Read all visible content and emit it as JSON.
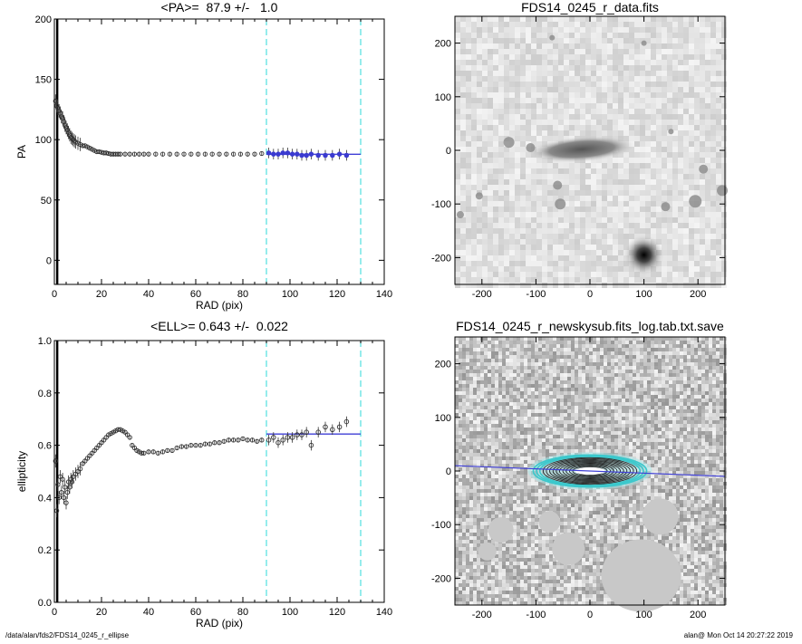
{
  "footer": {
    "path": "/data/alan/fds2/FDS14_0245_r_ellipse",
    "user_time": "alan@  Mon Oct 14 20:27:22 2019"
  },
  "colors": {
    "fit_line": "#3f3fd6",
    "bounds": "#4fe0e0",
    "points": "#333333",
    "blue_points": "#3a3ad0"
  },
  "chart_data": [
    {
      "type": "scatter",
      "title": "<PA>=  87.9 +/-   1.0",
      "xlabel": "RAD (pix)",
      "ylabel": "PA",
      "xlim": [
        0,
        140
      ],
      "ylim": [
        -20,
        200
      ],
      "xticks": [
        0,
        20,
        40,
        60,
        80,
        100,
        120,
        140
      ],
      "yticks": [
        0,
        50,
        100,
        150,
        200
      ],
      "mean_value": 87.9,
      "fit_range": [
        90,
        130
      ],
      "bounds": [
        90,
        130
      ],
      "points": [
        [
          0.5,
          132
        ],
        [
          1,
          128
        ],
        [
          1.5,
          126
        ],
        [
          2,
          124
        ],
        [
          2.5,
          122
        ],
        [
          3,
          119
        ],
        [
          3.5,
          118
        ],
        [
          4,
          115
        ],
        [
          4.5,
          112
        ],
        [
          5,
          110
        ],
        [
          5.5,
          108
        ],
        [
          6,
          106
        ],
        [
          6.5,
          104
        ],
        [
          7,
          102
        ],
        [
          7.5,
          101
        ],
        [
          8,
          100
        ],
        [
          8.5,
          99
        ],
        [
          9,
          98
        ],
        [
          10,
          97
        ],
        [
          11,
          96
        ],
        [
          12,
          95
        ],
        [
          13,
          95
        ],
        [
          14,
          94
        ],
        [
          15,
          93
        ],
        [
          16,
          92
        ],
        [
          17,
          91
        ],
        [
          18,
          90
        ],
        [
          19,
          90
        ],
        [
          20,
          89.5
        ],
        [
          21,
          89
        ],
        [
          22,
          89
        ],
        [
          23,
          88.5
        ],
        [
          24,
          88
        ],
        [
          25,
          88
        ],
        [
          26,
          88
        ],
        [
          27,
          88
        ],
        [
          28,
          88
        ],
        [
          30,
          88
        ],
        [
          32,
          88
        ],
        [
          34,
          88
        ],
        [
          36,
          88
        ],
        [
          38,
          88
        ],
        [
          40,
          88
        ],
        [
          43,
          88
        ],
        [
          46,
          88
        ],
        [
          49,
          88
        ],
        [
          52,
          88
        ],
        [
          55,
          88
        ],
        [
          58,
          88
        ],
        [
          61,
          88
        ],
        [
          64,
          88
        ],
        [
          67,
          88
        ],
        [
          70,
          88
        ],
        [
          73,
          88
        ],
        [
          76,
          88
        ],
        [
          79,
          88
        ],
        [
          82,
          88
        ],
        [
          85,
          88
        ],
        [
          88,
          88.5
        ]
      ],
      "fit_points": [
        [
          91,
          89
        ],
        [
          93,
          88
        ],
        [
          95,
          88
        ],
        [
          97,
          89
        ],
        [
          99,
          89
        ],
        [
          101,
          88
        ],
        [
          103,
          88
        ],
        [
          105,
          87
        ],
        [
          107,
          87
        ],
        [
          109,
          88
        ],
        [
          112,
          87
        ],
        [
          115,
          87
        ],
        [
          118,
          87
        ],
        [
          121,
          88
        ],
        [
          124,
          87
        ]
      ]
    },
    {
      "type": "scatter",
      "title": "<ELL>= 0.643 +/-  0.022",
      "xlabel": "RAD (pix)",
      "ylabel": "ellipticity",
      "xlim": [
        0,
        140
      ],
      "ylim": [
        0,
        1
      ],
      "xticks": [
        0,
        20,
        40,
        60,
        80,
        100,
        120,
        140
      ],
      "yticks": [
        0.0,
        0.2,
        0.4,
        0.6,
        0.8,
        1.0
      ],
      "mean_value": 0.643,
      "fit_range": [
        90,
        130
      ],
      "bounds": [
        90,
        130
      ],
      "points": [
        [
          0.5,
          0.54
        ],
        [
          1,
          0.35
        ],
        [
          1.5,
          0.45
        ],
        [
          2,
          0.4
        ],
        [
          2.5,
          0.48
        ],
        [
          3,
          0.42
        ],
        [
          3.5,
          0.47
        ],
        [
          4,
          0.4
        ],
        [
          4.5,
          0.44
        ],
        [
          5,
          0.38
        ],
        [
          5.5,
          0.42
        ],
        [
          6,
          0.46
        ],
        [
          6.5,
          0.44
        ],
        [
          7,
          0.47
        ],
        [
          7.5,
          0.46
        ],
        [
          8,
          0.48
        ],
        [
          9,
          0.49
        ],
        [
          10,
          0.5
        ],
        [
          11,
          0.51
        ],
        [
          12,
          0.53
        ],
        [
          13,
          0.54
        ],
        [
          14,
          0.55
        ],
        [
          15,
          0.56
        ],
        [
          16,
          0.57
        ],
        [
          17,
          0.58
        ],
        [
          18,
          0.59
        ],
        [
          19,
          0.6
        ],
        [
          20,
          0.61
        ],
        [
          21,
          0.62
        ],
        [
          22,
          0.63
        ],
        [
          23,
          0.64
        ],
        [
          24,
          0.645
        ],
        [
          25,
          0.65
        ],
        [
          26,
          0.655
        ],
        [
          27,
          0.66
        ],
        [
          28,
          0.66
        ],
        [
          29,
          0.655
        ],
        [
          30,
          0.65
        ],
        [
          31,
          0.64
        ],
        [
          32,
          0.63
        ],
        [
          33,
          0.6
        ],
        [
          34,
          0.59
        ],
        [
          35,
          0.58
        ],
        [
          36,
          0.575
        ],
        [
          37,
          0.57
        ],
        [
          38,
          0.57
        ],
        [
          40,
          0.575
        ],
        [
          42,
          0.575
        ],
        [
          44,
          0.57
        ],
        [
          46,
          0.575
        ],
        [
          48,
          0.58
        ],
        [
          50,
          0.58
        ],
        [
          52,
          0.59
        ],
        [
          54,
          0.595
        ],
        [
          56,
          0.595
        ],
        [
          58,
          0.6
        ],
        [
          60,
          0.6
        ],
        [
          62,
          0.6
        ],
        [
          64,
          0.605
        ],
        [
          66,
          0.605
        ],
        [
          68,
          0.61
        ],
        [
          70,
          0.61
        ],
        [
          72,
          0.615
        ],
        [
          74,
          0.62
        ],
        [
          76,
          0.62
        ],
        [
          78,
          0.62
        ],
        [
          80,
          0.625
        ],
        [
          82,
          0.62
        ],
        [
          84,
          0.62
        ],
        [
          86,
          0.615
        ],
        [
          88,
          0.62
        ]
      ],
      "fit_points": [
        [
          91,
          0.62
        ],
        [
          93,
          0.63
        ],
        [
          95,
          0.61
        ],
        [
          97,
          0.62
        ],
        [
          99,
          0.63
        ],
        [
          101,
          0.63
        ],
        [
          103,
          0.64
        ],
        [
          105,
          0.64
        ],
        [
          107,
          0.65
        ],
        [
          109,
          0.6
        ],
        [
          112,
          0.65
        ],
        [
          115,
          0.67
        ],
        [
          118,
          0.66
        ],
        [
          121,
          0.67
        ],
        [
          124,
          0.69
        ]
      ]
    },
    {
      "type": "heatmap",
      "title": "FDS14_0245_r_data.fits",
      "xlim": [
        -250,
        250
      ],
      "ylim": [
        -250,
        250
      ],
      "xticks": [
        -200,
        -100,
        0,
        100,
        200
      ],
      "yticks": [
        -200,
        -100,
        0,
        100,
        200
      ]
    },
    {
      "type": "heatmap",
      "title": "FDS14_0245_r_newskysub.fits_log.tab.txt.save",
      "xlim": [
        -250,
        250
      ],
      "ylim": [
        -250,
        250
      ],
      "xticks": [
        -200,
        -100,
        0,
        100,
        200
      ],
      "yticks": [
        -200,
        -100,
        0,
        100,
        200
      ]
    }
  ]
}
